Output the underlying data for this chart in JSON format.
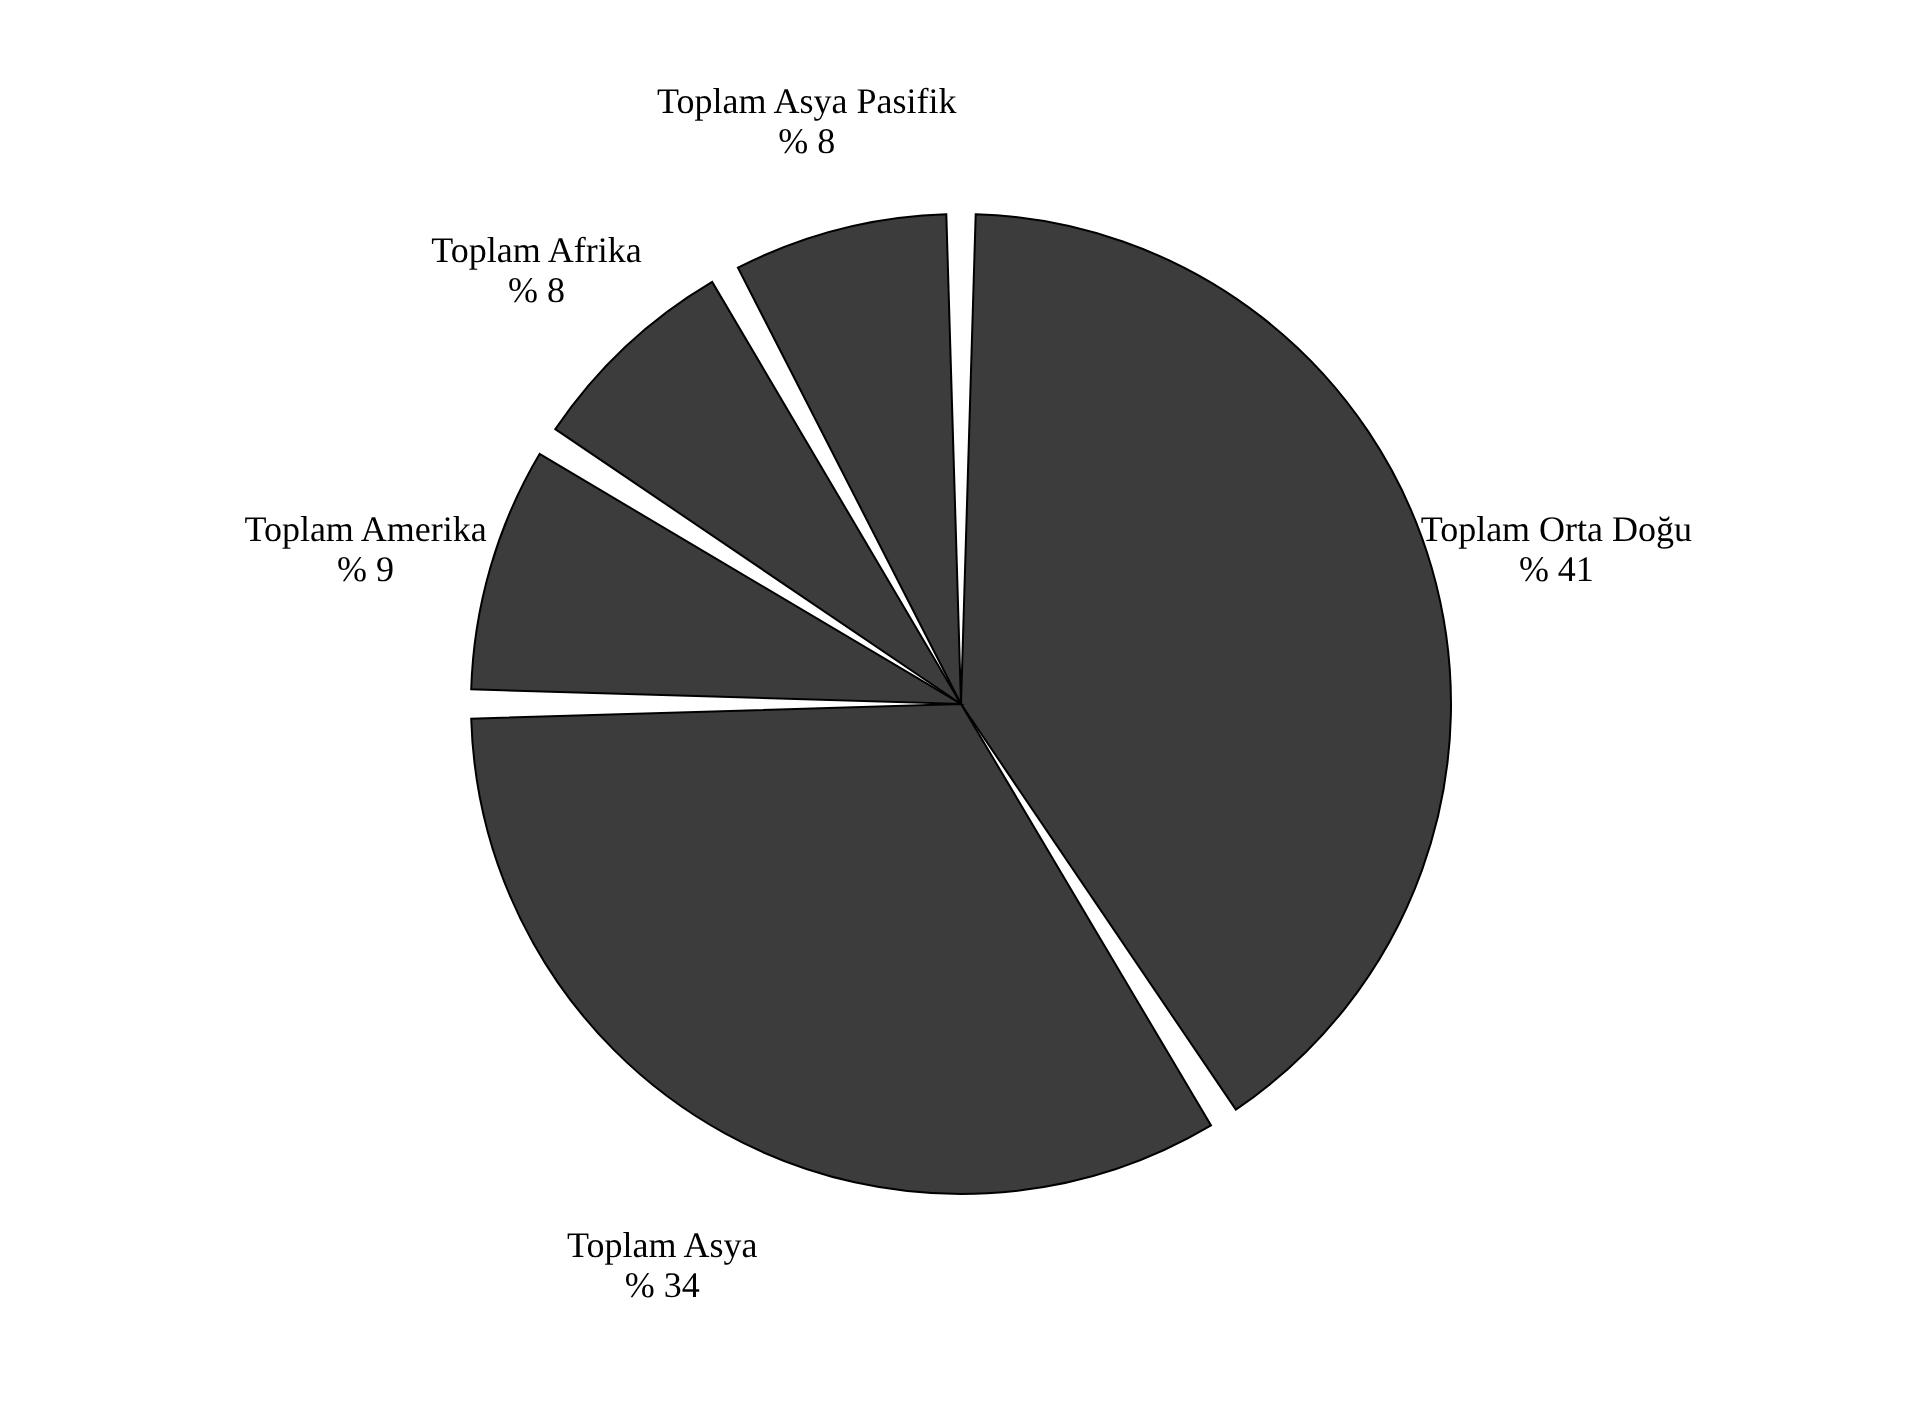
{
  "chart_data": {
    "type": "pie",
    "categories": [
      "Toplam Orta Doğu",
      "Toplam Asya",
      "Toplam Amerika",
      "Toplam Afrika",
      "Toplam Asya Pasifik"
    ],
    "values": [
      41,
      34,
      9,
      8,
      8
    ],
    "colors": [
      "#3c3c3c",
      "#3c3c3c",
      "#3c3c3c",
      "#3c3c3c",
      "#3c3c3c"
    ],
    "value_labels": [
      "% 41",
      "% 34",
      "% 9",
      "% 8",
      "% 8"
    ],
    "legend": false
  }
}
